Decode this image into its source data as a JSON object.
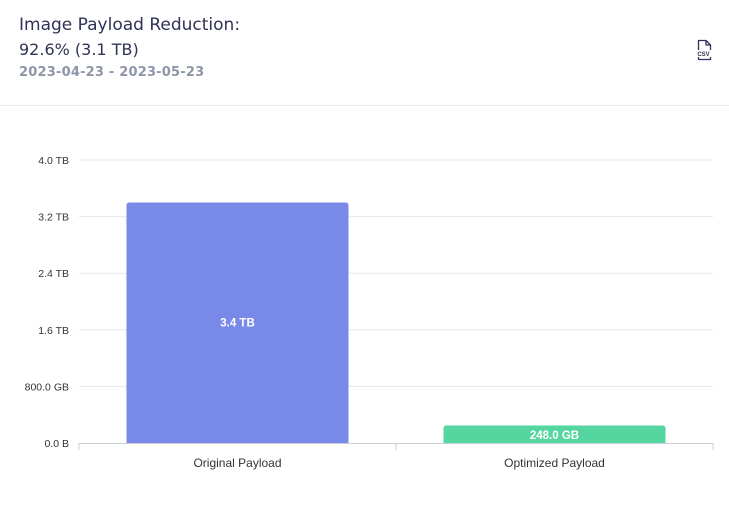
{
  "header": {
    "title": "Image Payload Reduction:",
    "subtitle": "92.6% (3.1 TB)",
    "date_range": "2023-04-23 - 2023-05-23",
    "csv_label": "CSV",
    "csv_icon": "csv-file-icon"
  },
  "colors": {
    "original": "#7889e8",
    "optimized": "#55d5a0",
    "grid": "#e6e7ec",
    "axis_text": "#333333"
  },
  "chart_data": {
    "type": "bar",
    "title": "Image Payload Reduction:",
    "subtitle": "92.6% (3.1 TB)",
    "categories": [
      "Original Payload",
      "Optimized Payload"
    ],
    "values": [
      3.4,
      0.248
    ],
    "value_unit": "TB",
    "data_labels": [
      "3.4 TB",
      "248.0 GB"
    ],
    "bar_colors": [
      "#7889e8",
      "#55d5a0"
    ],
    "ylim": [
      0,
      4.0
    ],
    "yticks": [
      0,
      0.8,
      1.6,
      2.4,
      3.2,
      4.0
    ],
    "ytick_labels": [
      "0.0 B",
      "800.0 GB",
      "1.6 TB",
      "2.4 TB",
      "3.2 TB",
      "4.0 TB"
    ],
    "xlabel": "",
    "ylabel": "",
    "grid": true,
    "legend": false
  }
}
